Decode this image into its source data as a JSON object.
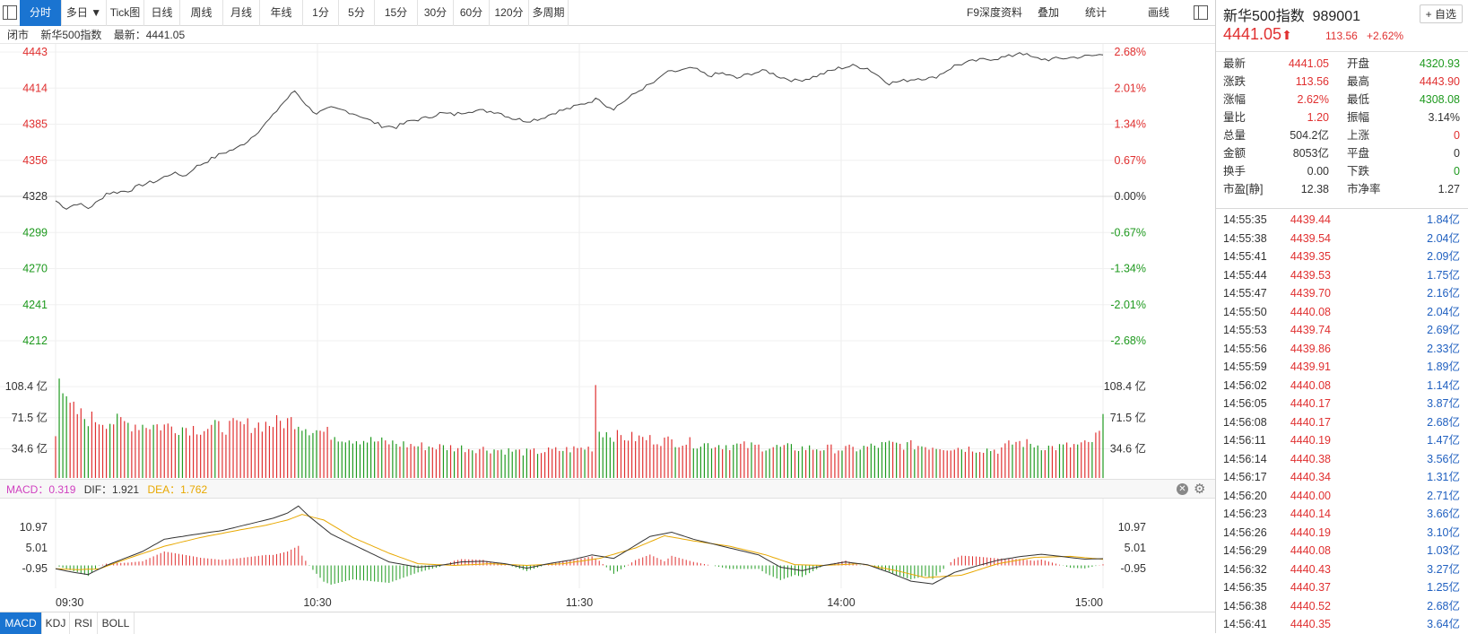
{
  "toolbar": {
    "tabs": [
      "分时",
      "多日 ▼",
      "Tick图",
      "日线",
      "周线",
      "月线",
      "年线",
      "1分",
      "5分",
      "15分",
      "30分",
      "60分",
      "120分",
      "多周期"
    ],
    "active": "分时",
    "right": [
      "F9深度资料",
      "叠加",
      "统计",
      "画线"
    ]
  },
  "infobar": {
    "status": "闭市",
    "name": "新华500指数",
    "latest": "最新：4441.05"
  },
  "macd_legend": {
    "macd": "MACD：0.319",
    "dif": "DIF：1.921",
    "dea": "DEA：1.762"
  },
  "bottom_tabs": [
    "MACD",
    "KDJ",
    "RSI",
    "BOLL"
  ],
  "side": {
    "name": "新华500指数",
    "code": "989001",
    "add_fav": "+ 自选",
    "price": "4441.05",
    "change": "113.56",
    "change_pct": "+2.62%",
    "stats": [
      {
        "l1": "最新",
        "v1": "4441.05",
        "c1": "red",
        "l2": "开盘",
        "v2": "4320.93",
        "c2": "green"
      },
      {
        "l1": "涨跌",
        "v1": "113.56",
        "c1": "red",
        "l2": "最高",
        "v2": "4443.90",
        "c2": "red"
      },
      {
        "l1": "涨幅",
        "v1": "2.62%",
        "c1": "red",
        "l2": "最低",
        "v2": "4308.08",
        "c2": "green"
      },
      {
        "l1": "量比",
        "v1": "1.20",
        "c1": "red",
        "l2": "振幅",
        "v2": "3.14%",
        "c2": "plain"
      },
      {
        "l1": "总量",
        "v1": "504.2亿",
        "c1": "plain",
        "l2": "上涨",
        "v2": "0",
        "c2": "red"
      },
      {
        "l1": "金额",
        "v1": "8053亿",
        "c1": "plain",
        "l2": "平盘",
        "v2": "0",
        "c2": "plain"
      },
      {
        "l1": "换手",
        "v1": "0.00",
        "c1": "plain",
        "l2": "下跌",
        "v2": "0",
        "c2": "green"
      },
      {
        "l1": "市盈[静]",
        "v1": "12.38",
        "c1": "plain",
        "l2": "市净率",
        "v2": "1.27",
        "c2": "plain"
      }
    ],
    "ticks": [
      {
        "t": "14:55:35",
        "p": "4439.44",
        "v": "1.84亿"
      },
      {
        "t": "14:55:38",
        "p": "4439.54",
        "v": "2.04亿"
      },
      {
        "t": "14:55:41",
        "p": "4439.35",
        "v": "2.09亿"
      },
      {
        "t": "14:55:44",
        "p": "4439.53",
        "v": "1.75亿"
      },
      {
        "t": "14:55:47",
        "p": "4439.70",
        "v": "2.16亿"
      },
      {
        "t": "14:55:50",
        "p": "4440.08",
        "v": "2.04亿"
      },
      {
        "t": "14:55:53",
        "p": "4439.74",
        "v": "2.69亿"
      },
      {
        "t": "14:55:56",
        "p": "4439.86",
        "v": "2.33亿"
      },
      {
        "t": "14:55:59",
        "p": "4439.91",
        "v": "1.89亿"
      },
      {
        "t": "14:56:02",
        "p": "4440.08",
        "v": "1.14亿"
      },
      {
        "t": "14:56:05",
        "p": "4440.17",
        "v": "3.87亿"
      },
      {
        "t": "14:56:08",
        "p": "4440.17",
        "v": "2.68亿"
      },
      {
        "t": "14:56:11",
        "p": "4440.19",
        "v": "1.47亿"
      },
      {
        "t": "14:56:14",
        "p": "4440.38",
        "v": "3.56亿"
      },
      {
        "t": "14:56:17",
        "p": "4440.34",
        "v": "1.31亿"
      },
      {
        "t": "14:56:20",
        "p": "4440.00",
        "v": "2.71亿"
      },
      {
        "t": "14:56:23",
        "p": "4440.14",
        "v": "3.66亿"
      },
      {
        "t": "14:56:26",
        "p": "4440.19",
        "v": "3.10亿"
      },
      {
        "t": "14:56:29",
        "p": "4440.08",
        "v": "1.03亿"
      },
      {
        "t": "14:56:32",
        "p": "4440.43",
        "v": "3.27亿"
      },
      {
        "t": "14:56:35",
        "p": "4440.37",
        "v": "1.25亿"
      },
      {
        "t": "14:56:38",
        "p": "4440.52",
        "v": "2.68亿"
      },
      {
        "t": "14:56:41",
        "p": "4440.35",
        "v": "3.64亿"
      }
    ]
  },
  "colors": {
    "up": "#e03030",
    "down": "#1f9a1f",
    "accent": "#1a74d1",
    "price_line": "#444444",
    "dea": "#e8a800"
  },
  "chart_data": {
    "type": "line",
    "prev_close": 4327.49,
    "price_ticks": [
      "4443",
      "4414",
      "4385",
      "4356",
      "4328",
      "4299",
      "4270",
      "4241",
      "4212"
    ],
    "pct_ticks": [
      "2.68%",
      "2.01%",
      "1.34%",
      "0.67%",
      "0.00%",
      "-0.67%",
      "-1.34%",
      "-2.01%",
      "-2.68%"
    ],
    "volume_ticks": [
      "108.4 亿",
      "71.5 亿",
      "34.6 亿"
    ],
    "macd_ticks": [
      "10.97",
      "5.01",
      "-0.95"
    ],
    "time_labels": [
      "09:30",
      "10:30",
      "11:30",
      "14:00",
      "15:00"
    ],
    "price_keys": [
      [
        0,
        4324
      ],
      [
        3,
        4318
      ],
      [
        6,
        4322
      ],
      [
        9,
        4318
      ],
      [
        12,
        4324
      ],
      [
        14,
        4330
      ],
      [
        20,
        4332
      ],
      [
        24,
        4337
      ],
      [
        28,
        4340
      ],
      [
        32,
        4346
      ],
      [
        36,
        4344
      ],
      [
        38,
        4350
      ],
      [
        42,
        4356
      ],
      [
        46,
        4362
      ],
      [
        50,
        4366
      ],
      [
        53,
        4372
      ],
      [
        56,
        4380
      ],
      [
        60,
        4392
      ],
      [
        62,
        4400
      ],
      [
        66,
        4412
      ],
      [
        68,
        4405
      ],
      [
        70,
        4398
      ],
      [
        72,
        4394
      ],
      [
        76,
        4398
      ],
      [
        80,
        4396
      ],
      [
        84,
        4392
      ],
      [
        86,
        4389
      ],
      [
        90,
        4384
      ],
      [
        94,
        4383
      ],
      [
        98,
        4388
      ],
      [
        102,
        4390
      ],
      [
        106,
        4394
      ],
      [
        110,
        4393
      ],
      [
        114,
        4396
      ],
      [
        118,
        4396
      ],
      [
        122,
        4395
      ],
      [
        126,
        4390
      ],
      [
        130,
        4388
      ],
      [
        134,
        4390
      ],
      [
        138,
        4395
      ],
      [
        142,
        4398
      ],
      [
        146,
        4402
      ],
      [
        150,
        4406
      ],
      [
        152,
        4400
      ],
      [
        154,
        4398
      ],
      [
        158,
        4406
      ],
      [
        162,
        4414
      ],
      [
        166,
        4420
      ],
      [
        168,
        4426
      ],
      [
        172,
        4428
      ],
      [
        176,
        4430
      ],
      [
        180,
        4424
      ],
      [
        184,
        4426
      ],
      [
        188,
        4422
      ],
      [
        192,
        4426
      ],
      [
        196,
        4428
      ],
      [
        200,
        4423
      ],
      [
        204,
        4420
      ],
      [
        208,
        4422
      ],
      [
        212,
        4426
      ],
      [
        216,
        4430
      ],
      [
        220,
        4432
      ],
      [
        224,
        4430
      ],
      [
        228,
        4422
      ],
      [
        230,
        4418
      ],
      [
        234,
        4420
      ],
      [
        238,
        4422
      ],
      [
        242,
        4422
      ],
      [
        244,
        4425
      ],
      [
        248,
        4432
      ],
      [
        252,
        4435
      ],
      [
        256,
        4437
      ],
      [
        260,
        4438
      ],
      [
        264,
        4440
      ],
      [
        266,
        4443
      ],
      [
        270,
        4438
      ],
      [
        274,
        4437
      ],
      [
        278,
        4438
      ],
      [
        282,
        4439
      ],
      [
        286,
        4440
      ],
      [
        289,
        4441
      ]
    ],
    "volume_keys": [
      [
        0,
        60
      ],
      [
        1,
        140
      ],
      [
        2,
        110
      ],
      [
        3,
        90
      ],
      [
        8,
        75
      ],
      [
        20,
        68
      ],
      [
        40,
        62
      ],
      [
        60,
        68
      ],
      [
        66,
        72
      ],
      [
        70,
        62
      ],
      [
        80,
        50
      ],
      [
        90,
        45
      ],
      [
        100,
        40
      ],
      [
        110,
        38
      ],
      [
        120,
        36
      ],
      [
        130,
        32
      ],
      [
        140,
        35
      ],
      [
        148,
        38
      ],
      [
        149,
        118
      ],
      [
        150,
        60
      ],
      [
        155,
        52
      ],
      [
        160,
        50
      ],
      [
        170,
        46
      ],
      [
        180,
        42
      ],
      [
        200,
        38
      ],
      [
        220,
        36
      ],
      [
        230,
        42
      ],
      [
        240,
        40
      ],
      [
        260,
        35
      ],
      [
        265,
        45
      ],
      [
        275,
        38
      ],
      [
        285,
        42
      ],
      [
        288,
        55
      ],
      [
        289,
        75
      ]
    ],
    "dif_keys": [
      [
        0,
        -0.95
      ],
      [
        5,
        -2
      ],
      [
        9,
        -2.6
      ],
      [
        14,
        0
      ],
      [
        24,
        4
      ],
      [
        30,
        7.5
      ],
      [
        38,
        8.8
      ],
      [
        46,
        10
      ],
      [
        54,
        12
      ],
      [
        60,
        13.5
      ],
      [
        64,
        15
      ],
      [
        67,
        17
      ],
      [
        70,
        14
      ],
      [
        76,
        9
      ],
      [
        84,
        5
      ],
      [
        92,
        1
      ],
      [
        100,
        -0.5
      ],
      [
        106,
        0
      ],
      [
        112,
        1
      ],
      [
        118,
        1.2
      ],
      [
        124,
        0.5
      ],
      [
        130,
        -0.8
      ],
      [
        136,
        0.5
      ],
      [
        142,
        1.5
      ],
      [
        148,
        3
      ],
      [
        154,
        2
      ],
      [
        158,
        4.5
      ],
      [
        164,
        8.3
      ],
      [
        170,
        9.5
      ],
      [
        176,
        7.5
      ],
      [
        182,
        6
      ],
      [
        188,
        4.5
      ],
      [
        194,
        3
      ],
      [
        200,
        -0.5
      ],
      [
        206,
        -1.5
      ],
      [
        212,
        0
      ],
      [
        218,
        1
      ],
      [
        224,
        0.2
      ],
      [
        230,
        -2
      ],
      [
        236,
        -4.5
      ],
      [
        242,
        -5.3
      ],
      [
        248,
        -2
      ],
      [
        254,
        -0.2
      ],
      [
        260,
        1.5
      ],
      [
        266,
        2.5
      ],
      [
        272,
        3.2
      ],
      [
        278,
        2.5
      ],
      [
        284,
        1.8
      ],
      [
        289,
        1.92
      ]
    ],
    "dea_keys": [
      [
        0,
        -0.95
      ],
      [
        6,
        -1.2
      ],
      [
        12,
        -1
      ],
      [
        20,
        2
      ],
      [
        30,
        5.5
      ],
      [
        40,
        8
      ],
      [
        50,
        10
      ],
      [
        58,
        11.5
      ],
      [
        64,
        13
      ],
      [
        68,
        14.6
      ],
      [
        74,
        13
      ],
      [
        82,
        8
      ],
      [
        92,
        3.5
      ],
      [
        100,
        0.5
      ],
      [
        110,
        0
      ],
      [
        120,
        0.5
      ],
      [
        130,
        0
      ],
      [
        140,
        0.5
      ],
      [
        150,
        2
      ],
      [
        160,
        5
      ],
      [
        168,
        8.5
      ],
      [
        176,
        7
      ],
      [
        186,
        5.5
      ],
      [
        196,
        3
      ],
      [
        204,
        0.2
      ],
      [
        212,
        0
      ],
      [
        222,
        0.5
      ],
      [
        232,
        -1.5
      ],
      [
        240,
        -3.5
      ],
      [
        250,
        -2.8
      ],
      [
        260,
        0.5
      ],
      [
        270,
        2.3
      ],
      [
        280,
        2.6
      ],
      [
        289,
        1.76
      ]
    ]
  }
}
